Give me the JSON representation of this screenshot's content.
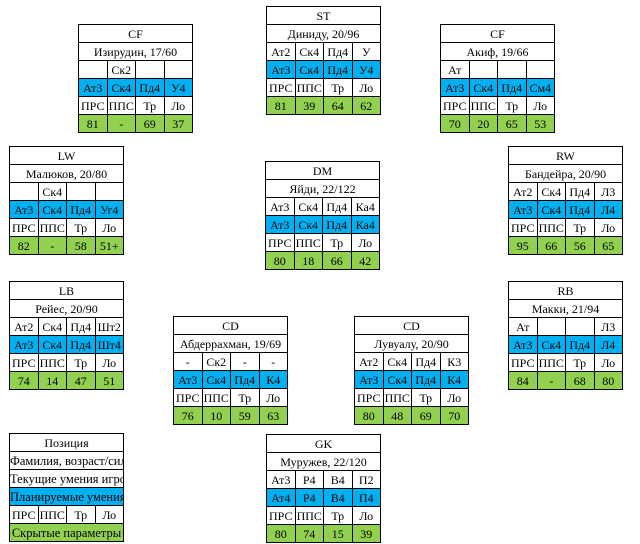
{
  "labels": [
    "ПРС",
    "ППС",
    "Тр",
    "Ло"
  ],
  "players": [
    {
      "id": "cf-left",
      "pos": "CF",
      "name": "Изирудин, 17/60",
      "current": [
        "",
        "Ск2",
        "",
        ""
      ],
      "planned": [
        "Ат3",
        "Ск4",
        "Пд4",
        "У4"
      ],
      "values": [
        "81",
        "-",
        "69",
        "37"
      ]
    },
    {
      "id": "st",
      "pos": "ST",
      "name": "Диниду, 20/96",
      "current": [
        "Ат2",
        "Ск4",
        "Пд4",
        "У"
      ],
      "planned": [
        "Ат3",
        "Ск4",
        "Пд4",
        "У4"
      ],
      "values": [
        "81",
        "39",
        "64",
        "62"
      ]
    },
    {
      "id": "cf-right",
      "pos": "CF",
      "name": "Акиф, 19/66",
      "current": [
        "Ат",
        "",
        "",
        ""
      ],
      "planned": [
        "Ат3",
        "Ск4",
        "Пд4",
        "См4"
      ],
      "values": [
        "70",
        "20",
        "65",
        "53"
      ]
    },
    {
      "id": "lw",
      "pos": "LW",
      "name": "Малюков, 20/80",
      "current": [
        "",
        "Ск4",
        "",
        ""
      ],
      "planned": [
        "Ат3",
        "Ск4",
        "Пд4",
        "Уг4"
      ],
      "values": [
        "82",
        "-",
        "58",
        "51+"
      ]
    },
    {
      "id": "dm",
      "pos": "DM",
      "name": "Яйди, 22/122",
      "current": [
        "Ат3",
        "Ск4",
        "Пд4",
        "Ка4"
      ],
      "planned": [
        "Ат3",
        "Ск4",
        "Пд4",
        "Ка4"
      ],
      "values": [
        "80",
        "18",
        "66",
        "42"
      ]
    },
    {
      "id": "rw",
      "pos": "RW",
      "name": "Бандейра, 20/90",
      "current": [
        "Ат2",
        "Ск4",
        "Пд4",
        "Л3"
      ],
      "planned": [
        "Ат3",
        "Ск4",
        "Пд4",
        "Л4"
      ],
      "values": [
        "95",
        "66",
        "56",
        "65"
      ]
    },
    {
      "id": "lb",
      "pos": "LB",
      "name": "Рейес, 20/90",
      "current": [
        "Ат2",
        "Ск4",
        "Пд4",
        "Шт2"
      ],
      "planned": [
        "Ат3",
        "Ск4",
        "Пд4",
        "Шт4"
      ],
      "values": [
        "74",
        "14",
        "47",
        "51"
      ]
    },
    {
      "id": "cd-left",
      "pos": "CD",
      "name": "Абдеррахман, 19/69",
      "current": [
        "-",
        "Ск2",
        "-",
        "-"
      ],
      "planned": [
        "Ат3",
        "Ск4",
        "Пд4",
        "К4"
      ],
      "values": [
        "76",
        "10",
        "59",
        "63"
      ]
    },
    {
      "id": "cd-right",
      "pos": "CD",
      "name": "Лувуалу, 20/90",
      "current": [
        "Ат2",
        "Ск4",
        "Пд4",
        "К3"
      ],
      "planned": [
        "Ат3",
        "Ск4",
        "Пд4",
        "К4"
      ],
      "values": [
        "80",
        "48",
        "69",
        "70"
      ]
    },
    {
      "id": "rb",
      "pos": "RB",
      "name": "Макки, 21/94",
      "current": [
        "Ат",
        "",
        "",
        "Л3"
      ],
      "planned": [
        "Ат3",
        "Ск4",
        "Пд4",
        "Л4"
      ],
      "values": [
        "84",
        "-",
        "68",
        "80"
      ]
    },
    {
      "id": "gk",
      "pos": "GK",
      "name": "Муружев, 22/120",
      "current": [
        "Ат3",
        "Р4",
        "В4",
        "П2"
      ],
      "planned": [
        "Ат4",
        "Р4",
        "В4",
        "П4"
      ],
      "values": [
        "80",
        "74",
        "15",
        "39"
      ]
    }
  ],
  "legend": {
    "position": "Позиция",
    "name_age": "Фамилия, возраст/сила",
    "current": "Текущие умения игрока",
    "planned": "Планируемые умения",
    "hidden": "Скрытые параметры"
  }
}
